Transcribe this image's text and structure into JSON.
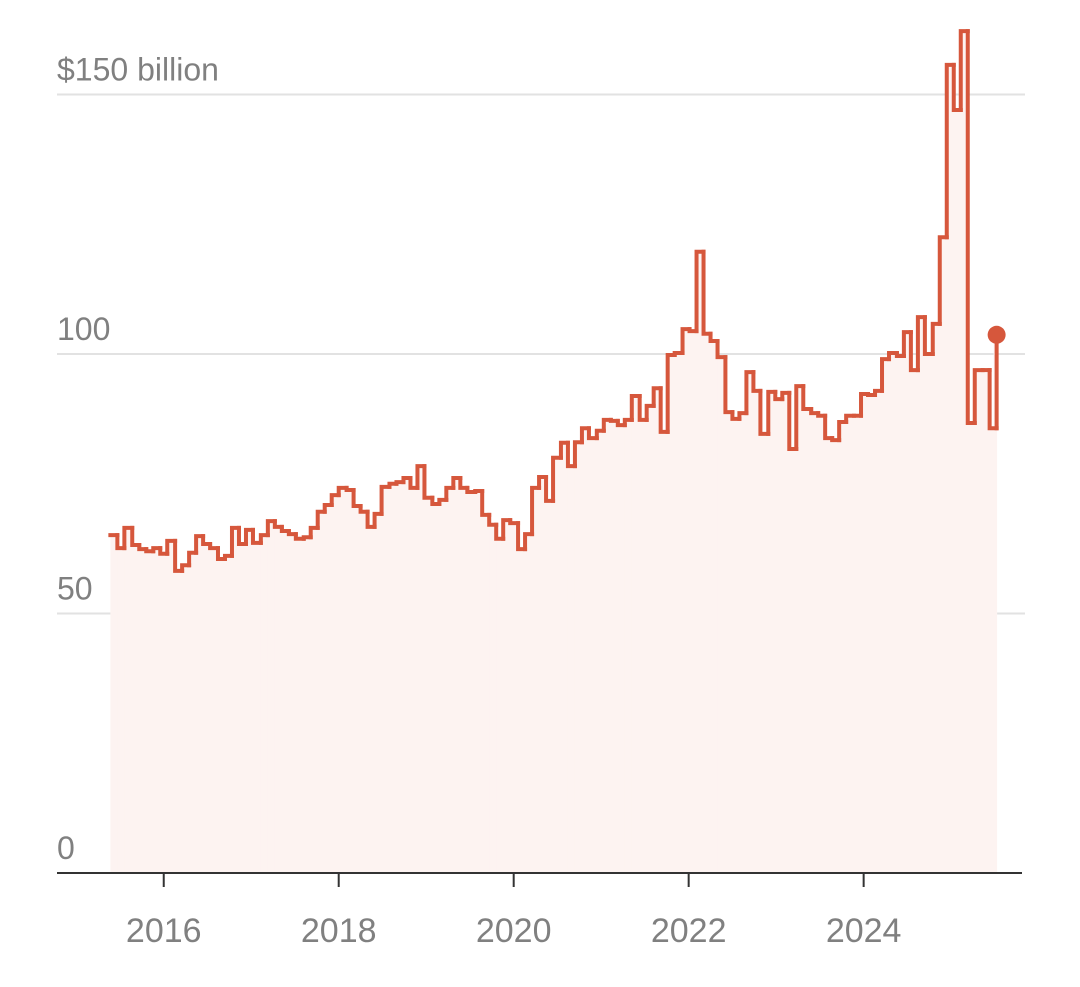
{
  "chart_data": {
    "type": "step",
    "color": "#d6573c",
    "area_color": "#fdf3f1",
    "xlim": [
      2014.78,
      2025.81
    ],
    "ylim": [
      0,
      163
    ],
    "xticks": [
      2016,
      2018,
      2020,
      2022,
      2024
    ],
    "yticks": [
      0,
      50,
      100,
      {
        "value": 150,
        "label": "$150 billion"
      }
    ],
    "grid": true,
    "x": [
      2015.39,
      2015.47,
      2015.55,
      2015.64,
      2015.72,
      2015.8,
      2015.88,
      2015.96,
      2016.04,
      2016.13,
      2016.21,
      2016.29,
      2016.37,
      2016.45,
      2016.53,
      2016.62,
      2016.7,
      2016.78,
      2016.86,
      2016.94,
      2017.02,
      2017.11,
      2017.19,
      2017.27,
      2017.35,
      2017.43,
      2017.51,
      2017.6,
      2017.68,
      2017.76,
      2017.84,
      2017.92,
      2018.0,
      2018.09,
      2018.17,
      2018.25,
      2018.33,
      2018.41,
      2018.49,
      2018.58,
      2018.66,
      2018.74,
      2018.82,
      2018.9,
      2018.98,
      2019.07,
      2019.15,
      2019.23,
      2019.31,
      2019.39,
      2019.47,
      2019.56,
      2019.64,
      2019.72,
      2019.8,
      2019.88,
      2019.96,
      2020.05,
      2020.13,
      2020.21,
      2020.29,
      2020.37,
      2020.45,
      2020.54,
      2020.62,
      2020.7,
      2020.78,
      2020.86,
      2020.95,
      2021.03,
      2021.11,
      2021.19,
      2021.27,
      2021.35,
      2021.44,
      2021.52,
      2021.6,
      2021.68,
      2021.76,
      2021.84,
      2021.93,
      2022.01,
      2022.09,
      2022.17,
      2022.25,
      2022.33,
      2022.42,
      2022.5,
      2022.58,
      2022.66,
      2022.74,
      2022.82,
      2022.91,
      2022.99,
      2023.07,
      2023.15,
      2023.23,
      2023.31,
      2023.4,
      2023.48,
      2023.56,
      2023.64,
      2023.72,
      2023.8,
      2023.89,
      2023.97,
      2024.05,
      2024.13,
      2024.21,
      2024.29,
      2024.38,
      2024.46,
      2024.54,
      2024.62,
      2024.7,
      2024.79,
      2024.87,
      2024.95,
      2025.03,
      2025.11,
      2025.19,
      2025.27,
      2025.36,
      2025.44,
      2025.52
    ],
    "values": [
      65.1,
      62.6,
      66.5,
      63.2,
      62.4,
      62.0,
      62.6,
      61.5,
      64.0,
      58.2,
      59.3,
      61.7,
      64.9,
      63.4,
      62.6,
      60.5,
      61.1,
      66.5,
      63.4,
      66.1,
      63.6,
      65.1,
      67.8,
      66.7,
      65.9,
      65.3,
      64.4,
      64.7,
      66.5,
      69.6,
      70.9,
      72.8,
      74.2,
      73.8,
      70.7,
      69.6,
      66.7,
      69.2,
      74.4,
      75.0,
      75.3,
      76.1,
      74.2,
      78.4,
      72.3,
      71.1,
      71.9,
      74.2,
      76.1,
      74.2,
      73.4,
      73.6,
      69.0,
      67.1,
      64.4,
      68.0,
      67.4,
      62.4,
      65.3,
      74.2,
      76.3,
      71.7,
      80.0,
      82.9,
      78.4,
      83.0,
      85.7,
      83.8,
      85.2,
      87.3,
      87.1,
      86.3,
      87.3,
      91.9,
      87.3,
      90.0,
      93.4,
      85.0,
      99.8,
      100.2,
      104.8,
      104.4,
      119.7,
      103.9,
      102.5,
      99.4,
      88.8,
      87.5,
      88.6,
      96.5,
      92.9,
      84.6,
      92.7,
      91.3,
      92.5,
      81.7,
      93.8,
      89.4,
      88.6,
      88.1,
      83.8,
      83.4,
      86.9,
      88.1,
      88.1,
      92.3,
      92.1,
      92.9,
      99.0,
      100.2,
      99.6,
      104.2,
      96.9,
      107.1,
      100.0,
      105.8,
      122.5,
      155.7,
      147.0,
      162.2,
      86.7,
      96.9,
      96.9,
      85.7,
      103.7
    ]
  }
}
